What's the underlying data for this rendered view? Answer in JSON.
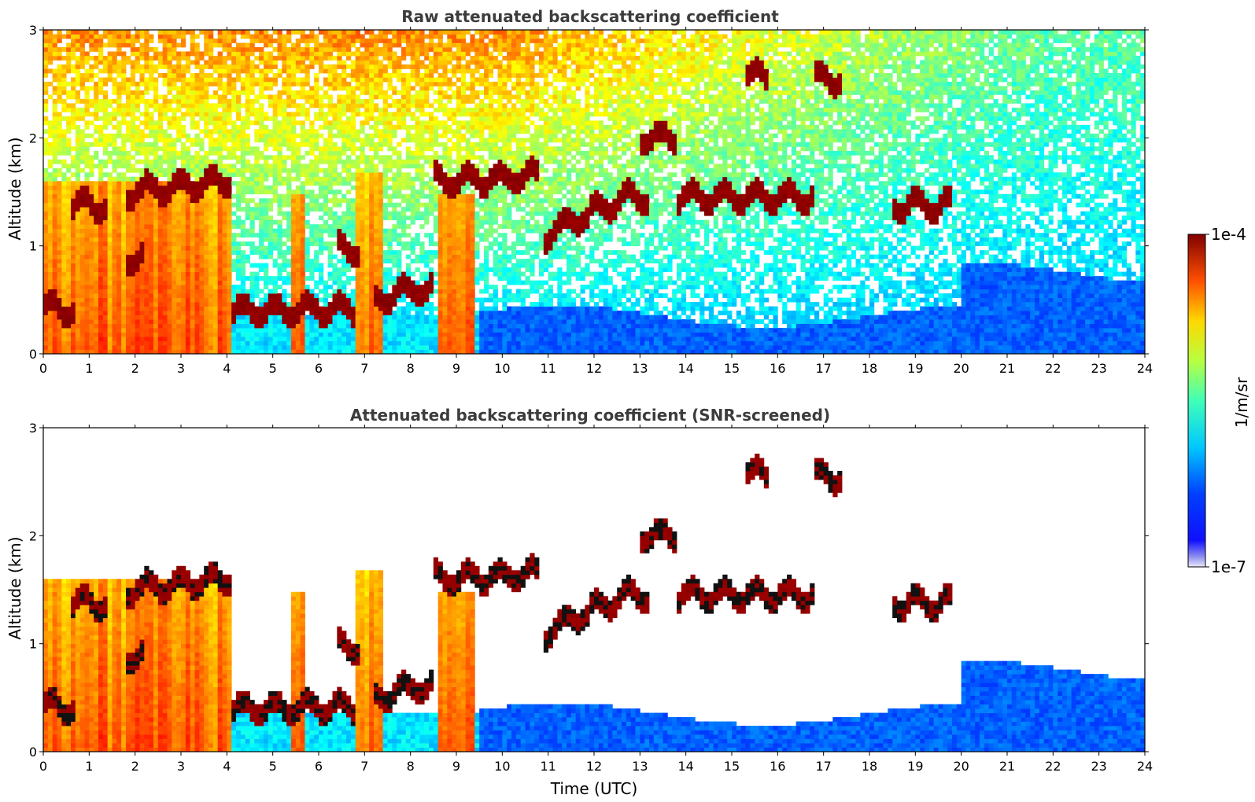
{
  "chart_data": [
    {
      "type": "heatmap",
      "title": "Raw attenuated backscattering coefficient",
      "xlabel": "",
      "ylabel": "Altitude (km)",
      "xlim": [
        0,
        24
      ],
      "ylim": [
        0,
        3
      ],
      "xticks": [
        "0",
        "1",
        "2",
        "3",
        "4",
        "5",
        "6",
        "7",
        "8",
        "9",
        "10",
        "11",
        "12",
        "13",
        "14",
        "15",
        "16",
        "17",
        "18",
        "19",
        "20",
        "21",
        "22",
        "23",
        "24"
      ],
      "yticks": [
        "0",
        "1",
        "2",
        "3"
      ],
      "screened": false
    },
    {
      "type": "heatmap",
      "title": "Attenuated backscattering coefficient (SNR-screened)",
      "xlabel": "Time (UTC)",
      "ylabel": "Altitude (km)",
      "xlim": [
        0,
        24
      ],
      "ylim": [
        0,
        3
      ],
      "xticks": [
        "0",
        "1",
        "2",
        "3",
        "4",
        "5",
        "6",
        "7",
        "8",
        "9",
        "10",
        "11",
        "12",
        "13",
        "14",
        "15",
        "16",
        "17",
        "18",
        "19",
        "20",
        "21",
        "22",
        "23",
        "24"
      ],
      "yticks": [
        "0",
        "1",
        "2",
        "3"
      ],
      "screened": true
    }
  ],
  "colorbar": {
    "max_label": "1e-4",
    "min_label": "1e-7",
    "unit_label": "1/m/sr",
    "scale": "log",
    "colormap": "jet"
  }
}
